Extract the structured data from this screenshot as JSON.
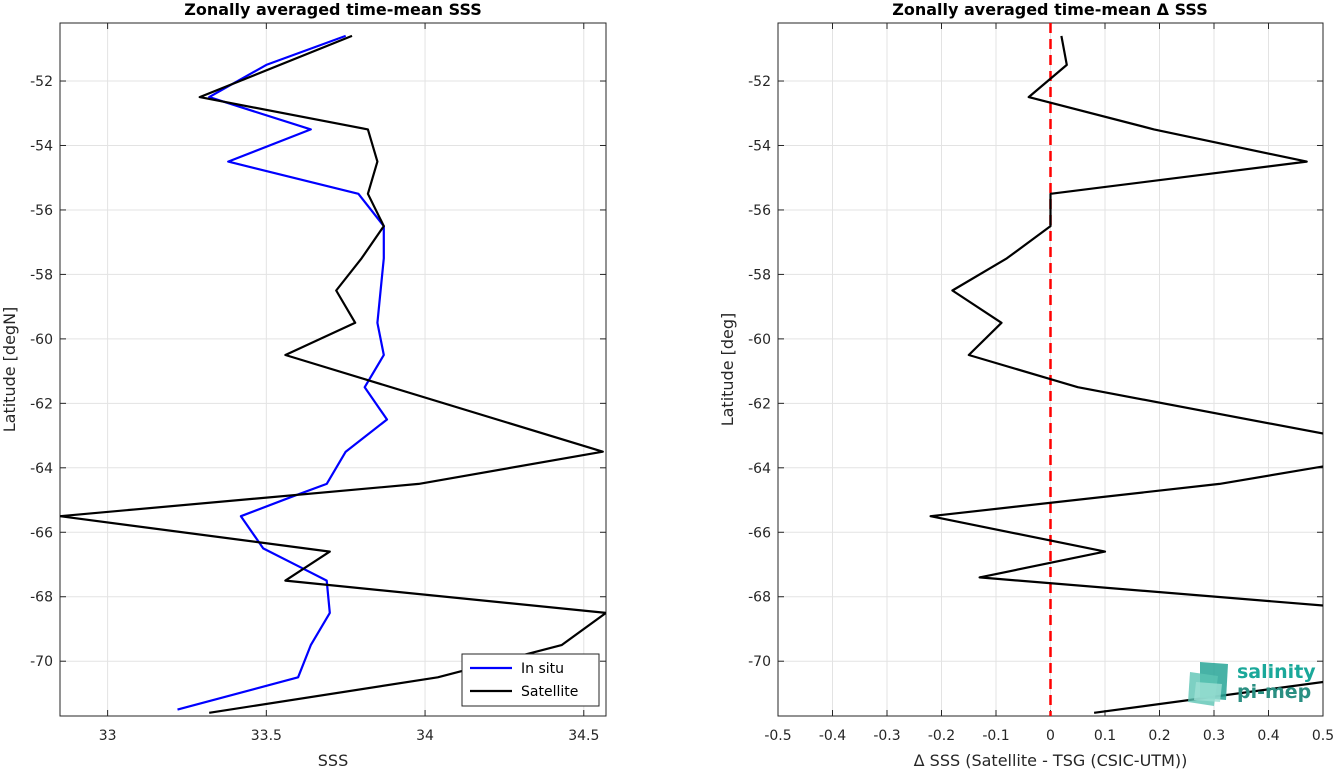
{
  "chart_data": [
    {
      "type": "line",
      "title": "Zonally averaged time-mean SSS",
      "xlabel": "SSS",
      "ylabel": "Latitude [degN]",
      "xlim": [
        32.85,
        34.57
      ],
      "ylim": [
        -71.7,
        -50.2
      ],
      "xticks": [
        33,
        33.5,
        34,
        34.5
      ],
      "xtick_labels": [
        "33",
        "33.5",
        "34",
        "34.5"
      ],
      "yticks": [
        -52,
        -54,
        -56,
        -58,
        -60,
        -62,
        -64,
        -66,
        -68,
        -70
      ],
      "ytick_labels": [
        "-52",
        "-54",
        "-56",
        "-58",
        "-60",
        "-62",
        "-64",
        "-66",
        "-68",
        "-70"
      ],
      "grid": true,
      "legend_position": "bottom-right",
      "series": [
        {
          "name": "In situ",
          "color": "#0000ff",
          "points": [
            [
              33.75,
              -50.6
            ],
            [
              33.5,
              -51.5
            ],
            [
              33.32,
              -52.5
            ],
            [
              33.64,
              -53.5
            ],
            [
              33.38,
              -54.5
            ],
            [
              33.79,
              -55.5
            ],
            [
              33.87,
              -56.5
            ],
            [
              33.87,
              -57.5
            ],
            [
              33.86,
              -58.5
            ],
            [
              33.85,
              -59.5
            ],
            [
              33.87,
              -60.5
            ],
            [
              33.81,
              -61.5
            ],
            [
              33.88,
              -62.5
            ],
            [
              33.75,
              -63.5
            ],
            [
              33.69,
              -64.5
            ],
            [
              33.58,
              -64.9
            ],
            [
              33.42,
              -65.5
            ],
            [
              33.49,
              -66.5
            ],
            [
              33.61,
              -67.1
            ],
            [
              33.69,
              -67.5
            ],
            [
              33.7,
              -68.5
            ],
            [
              33.64,
              -69.5
            ],
            [
              33.6,
              -70.5
            ],
            [
              33.22,
              -71.5
            ]
          ]
        },
        {
          "name": "Satellite",
          "color": "#000000",
          "points": [
            [
              33.77,
              -50.6
            ],
            [
              33.29,
              -52.5
            ],
            [
              33.82,
              -53.5
            ],
            [
              33.85,
              -54.5
            ],
            [
              33.82,
              -55.5
            ],
            [
              33.87,
              -56.5
            ],
            [
              33.8,
              -57.5
            ],
            [
              33.72,
              -58.5
            ],
            [
              33.78,
              -59.5
            ],
            [
              33.56,
              -60.5
            ],
            [
              34.56,
              -63.5
            ],
            [
              33.98,
              -64.5
            ],
            [
              32.85,
              -65.5
            ],
            [
              33.7,
              -66.6
            ],
            [
              33.56,
              -67.5
            ],
            [
              34.57,
              -68.5
            ],
            [
              34.43,
              -69.5
            ],
            [
              34.04,
              -70.5
            ],
            [
              33.32,
              -71.6
            ]
          ]
        }
      ]
    },
    {
      "type": "line",
      "title": "Zonally averaged time-mean Δ SSS",
      "xlabel": "Δ SSS (Satellite - TSG (CSIC-UTM))",
      "ylabel": "Latitude [deg]",
      "xlim": [
        -0.5,
        0.5
      ],
      "ylim": [
        -71.7,
        -50.2
      ],
      "xticks": [
        -0.5,
        -0.4,
        -0.3,
        -0.2,
        -0.1,
        0,
        0.1,
        0.2,
        0.3,
        0.4,
        0.5
      ],
      "xtick_labels": [
        "-0.5",
        "-0.4",
        "-0.3",
        "-0.2",
        "-0.1",
        "0",
        "0.1",
        "0.2",
        "0.3",
        "0.4",
        "0.5"
      ],
      "yticks": [
        -52,
        -54,
        -56,
        -58,
        -60,
        -62,
        -64,
        -66,
        -68,
        -70
      ],
      "ytick_labels": [
        "-52",
        "-54",
        "-56",
        "-58",
        "-60",
        "-62",
        "-64",
        "-66",
        "-68",
        "-70"
      ],
      "grid": true,
      "reference_line": {
        "x": 0,
        "color": "#ff0000",
        "style": "dashed"
      },
      "series": [
        {
          "color": "#000000",
          "points": [
            [
              0.02,
              -50.6
            ],
            [
              0.03,
              -51.5
            ],
            [
              -0.04,
              -52.5
            ],
            [
              0.19,
              -53.5
            ],
            [
              0.47,
              -54.5
            ],
            [
              0.0,
              -55.5
            ],
            [
              0.0,
              -56.5
            ],
            [
              -0.08,
              -57.5
            ],
            [
              -0.18,
              -58.5
            ],
            [
              -0.09,
              -59.5
            ],
            [
              -0.15,
              -60.5
            ],
            [
              0.05,
              -61.5
            ],
            [
              0.52,
              -63.0
            ]
          ]
        },
        {
          "color": "#000000",
          "points": [
            [
              0.52,
              -63.9
            ],
            [
              0.31,
              -64.5
            ],
            [
              -0.22,
              -65.5
            ],
            [
              0.1,
              -66.6
            ],
            [
              -0.13,
              -67.4
            ],
            [
              0.52,
              -68.3
            ]
          ]
        },
        {
          "color": "#000000",
          "points": [
            [
              0.52,
              -70.6
            ],
            [
              0.08,
              -71.6
            ]
          ]
        }
      ]
    }
  ],
  "logo": {
    "line1": "salinity",
    "line2": "pi-mep",
    "color": "#1aa89a",
    "accent": "#2a8f82"
  }
}
